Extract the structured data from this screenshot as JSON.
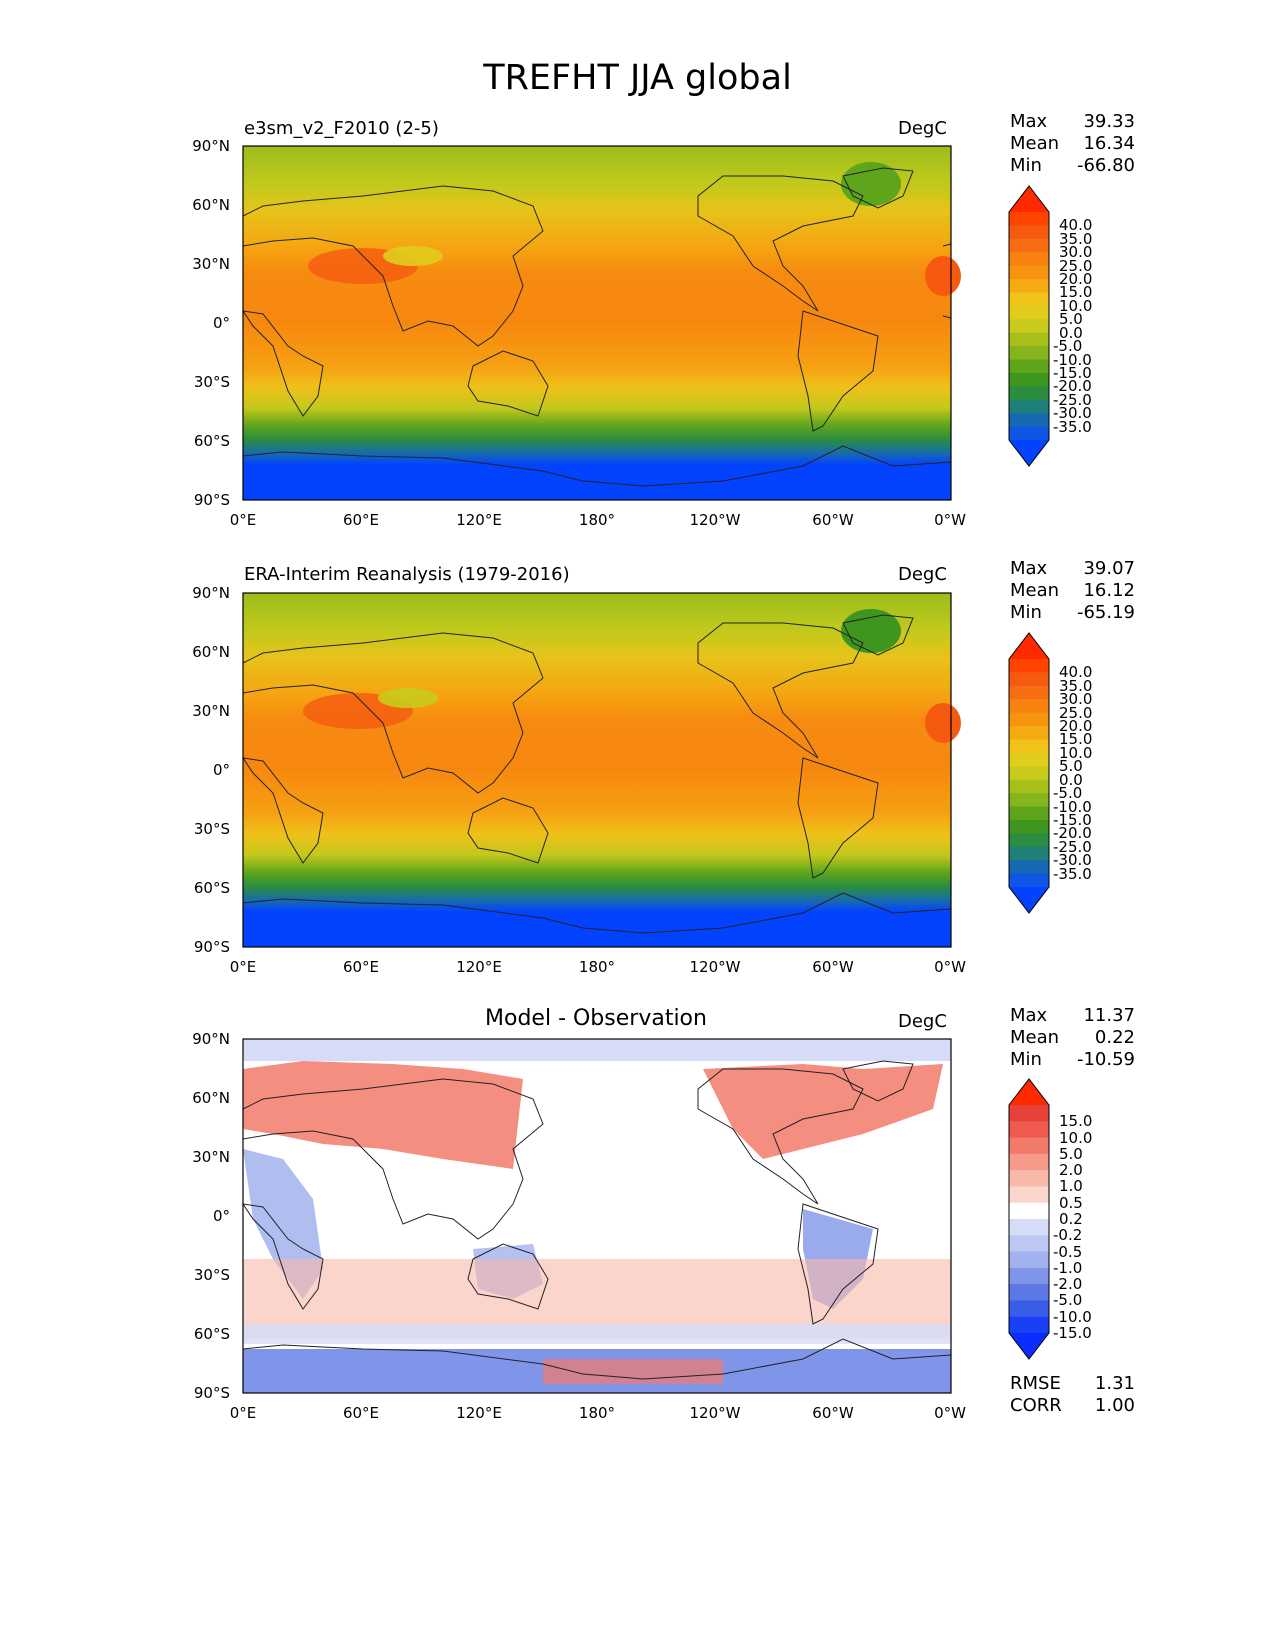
{
  "title": "TREFHT JJA global",
  "units": "DegC",
  "lat_labels": [
    "90°N",
    "60°N",
    "30°N",
    "0°",
    "30°S",
    "60°S",
    "90°S"
  ],
  "lon_labels": [
    "0°E",
    "60°E",
    "120°E",
    "180°",
    "120°W",
    "60°W",
    "0°W"
  ],
  "panels": [
    {
      "label": "e3sm_v2_F2010 (2-5)",
      "units": "DegC",
      "stats": {
        "max_label": "Max",
        "max": "39.33",
        "mean_label": "Mean",
        "mean": "16.34",
        "min_label": "Min",
        "min": "-66.80"
      },
      "colorbar": {
        "ticks": [
          "40.0",
          "35.0",
          "30.0",
          "25.0",
          "20.0",
          "15.0",
          "10.0",
          "5.0",
          "0.0",
          "-5.0",
          "-10.0",
          "-15.0",
          "-20.0",
          "-25.0",
          "-30.0",
          "-35.0"
        ],
        "colors": [
          "#ff2a00",
          "#ff4400",
          "#f55a10",
          "#f76e12",
          "#f7820f",
          "#f6940f",
          "#f5aa13",
          "#f0c21a",
          "#e1cd1c",
          "#c9cb1c",
          "#a8bf1b",
          "#86b41b",
          "#5ea51c",
          "#3e961f",
          "#2a8d40",
          "#1f7f79",
          "#1769b2",
          "#0f55e6",
          "#0342ff"
        ]
      }
    },
    {
      "label": "ERA-Interim Reanalysis (1979-2016)",
      "units": "DegC",
      "stats": {
        "max_label": "Max",
        "max": "39.07",
        "mean_label": "Mean",
        "mean": "16.12",
        "min_label": "Min",
        "min": "-65.19"
      },
      "colorbar": {
        "ticks": [
          "40.0",
          "35.0",
          "30.0",
          "25.0",
          "20.0",
          "15.0",
          "10.0",
          "5.0",
          "0.0",
          "-5.0",
          "-10.0",
          "-15.0",
          "-20.0",
          "-25.0",
          "-30.0",
          "-35.0"
        ],
        "colors": [
          "#ff2a00",
          "#ff4400",
          "#f55a10",
          "#f76e12",
          "#f7820f",
          "#f6940f",
          "#f5aa13",
          "#f0c21a",
          "#e1cd1c",
          "#c9cb1c",
          "#a8bf1b",
          "#86b41b",
          "#5ea51c",
          "#3e961f",
          "#2a8d40",
          "#1f7f79",
          "#1769b2",
          "#0f55e6",
          "#0342ff"
        ]
      }
    },
    {
      "label": "Model - Observation",
      "units": "DegC",
      "stats": {
        "max_label": "Max",
        "max": "11.37",
        "mean_label": "Mean",
        "mean": "0.22",
        "min_label": "Min",
        "min": "-10.59"
      },
      "extra": {
        "rmse_label": "RMSE",
        "rmse": "1.31",
        "corr_label": "CORR",
        "corr": "1.00"
      },
      "colorbar": {
        "ticks": [
          "15.0",
          "10.0",
          "5.0",
          "2.0",
          "1.0",
          "0.5",
          "0.2",
          "-0.2",
          "-0.5",
          "-1.0",
          "-2.0",
          "-5.0",
          "-10.0",
          "-15.0"
        ],
        "colors": [
          "#ff2a00",
          "#e8413a",
          "#ef5b50",
          "#f27a6a",
          "#f59a88",
          "#f8b8aa",
          "#fbd6cc",
          "#ffffff",
          "#d6dcf7",
          "#bcc8f3",
          "#a1b2ee",
          "#7f95e9",
          "#5c78e4",
          "#3a5de8",
          "#1a40f5",
          "#0a2cff"
        ]
      }
    }
  ]
}
